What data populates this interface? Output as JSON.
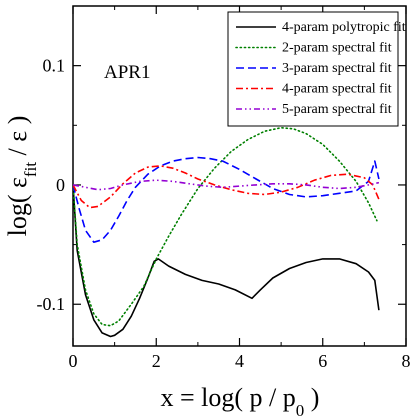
{
  "chart_data": {
    "type": "line",
    "annotation": "APR1",
    "xlabel": {
      "main": "x = log( p / p",
      "sub": "0",
      "tail": " )"
    },
    "ylabel": {
      "main": "log( ε",
      "sub": "fit",
      "tail": " / ε )"
    },
    "xlim": [
      0,
      8
    ],
    "ylim": [
      -0.135,
      0.15
    ],
    "xticks": [
      0,
      2,
      4,
      6,
      8
    ],
    "xtick_labels": [
      "0",
      "2",
      "4",
      "6",
      "8"
    ],
    "yticks": [
      -0.1,
      0,
      0.1
    ],
    "ytick_labels": [
      "-0.1",
      "0",
      "0.1"
    ],
    "grid": false,
    "legend_position": "top-right",
    "series": [
      {
        "name": "4-param polytropic fit",
        "color": "#000000",
        "dash": "solid",
        "x": [
          0,
          0.1,
          0.3,
          0.5,
          0.7,
          0.9,
          1.0,
          1.2,
          1.4,
          1.6,
          1.8,
          1.95,
          2.05,
          2.3,
          2.7,
          3.1,
          3.5,
          3.9,
          4.3,
          4.5,
          4.8,
          5.2,
          5.6,
          6.0,
          6.4,
          6.8,
          7.1,
          7.25,
          7.35
        ],
        "y": [
          0,
          -0.055,
          -0.092,
          -0.113,
          -0.124,
          -0.127,
          -0.126,
          -0.121,
          -0.11,
          -0.095,
          -0.078,
          -0.064,
          -0.062,
          -0.068,
          -0.075,
          -0.08,
          -0.083,
          -0.088,
          -0.095,
          -0.088,
          -0.078,
          -0.07,
          -0.065,
          -0.062,
          -0.062,
          -0.066,
          -0.073,
          -0.08,
          -0.105
        ]
      },
      {
        "name": "2-param spectral fit",
        "color": "#008000",
        "dash": "1.2,3",
        "x": [
          0,
          0.1,
          0.3,
          0.5,
          0.7,
          0.9,
          1.1,
          1.4,
          1.7,
          2.0,
          2.3,
          2.6,
          3.0,
          3.4,
          3.8,
          4.2,
          4.6,
          5.0,
          5.3,
          5.6,
          6.0,
          6.4,
          6.8,
          7.1,
          7.3
        ],
        "y": [
          0,
          -0.05,
          -0.088,
          -0.108,
          -0.117,
          -0.118,
          -0.114,
          -0.1,
          -0.085,
          -0.062,
          -0.043,
          -0.025,
          -0.003,
          0.014,
          0.028,
          0.038,
          0.045,
          0.048,
          0.047,
          0.043,
          0.034,
          0.02,
          0.003,
          -0.015,
          -0.03
        ]
      },
      {
        "name": "3-param spectral fit",
        "color": "#0000ff",
        "dash": "8,4",
        "x": [
          0,
          0.15,
          0.3,
          0.5,
          0.7,
          0.9,
          1.1,
          1.3,
          1.5,
          1.8,
          2.1,
          2.4,
          2.7,
          3.0,
          3.3,
          3.6,
          4.0,
          4.4,
          4.8,
          5.2,
          5.6,
          6.0,
          6.4,
          6.8,
          7.1,
          7.25,
          7.35
        ],
        "y": [
          0,
          -0.02,
          -0.038,
          -0.048,
          -0.046,
          -0.038,
          -0.026,
          -0.013,
          -0.002,
          0.009,
          0.016,
          0.02,
          0.022,
          0.023,
          0.022,
          0.02,
          0.013,
          0.005,
          -0.003,
          -0.008,
          -0.01,
          -0.009,
          -0.007,
          -0.005,
          0.003,
          0.02,
          0.005
        ]
      },
      {
        "name": "4-param spectral fit",
        "color": "#ff0000",
        "dash": "7,3,2,3",
        "x": [
          0,
          0.2,
          0.4,
          0.6,
          0.9,
          1.2,
          1.5,
          1.8,
          2.1,
          2.4,
          2.7,
          3.0,
          3.4,
          3.8,
          4.2,
          4.6,
          5.0,
          5.4,
          5.8,
          6.2,
          6.6,
          7.0,
          7.2,
          7.35
        ],
        "y": [
          0,
          -0.013,
          -0.019,
          -0.018,
          -0.01,
          0.001,
          0.01,
          0.015,
          0.016,
          0.014,
          0.01,
          0.005,
          0.0,
          -0.004,
          -0.007,
          -0.008,
          -0.006,
          -0.002,
          0.004,
          0.008,
          0.009,
          0.006,
          0.0,
          -0.012
        ]
      },
      {
        "name": "5-param spectral fit",
        "color": "#9400d3",
        "dash": "6,3,1.5,3,1.5,3",
        "x": [
          0,
          0.3,
          0.6,
          0.9,
          1.2,
          1.6,
          2.0,
          2.4,
          2.8,
          3.2,
          3.6,
          4.0,
          4.4,
          4.8,
          5.2,
          5.6,
          6.0,
          6.4,
          6.8,
          7.1,
          7.35
        ],
        "y": [
          0,
          -0.002,
          -0.004,
          -0.003,
          0.0,
          0.003,
          0.004,
          0.003,
          0.001,
          -0.001,
          -0.002,
          -0.001,
          0.0,
          0.001,
          0.001,
          0.0,
          -0.002,
          -0.003,
          -0.002,
          0.0,
          0.002
        ]
      }
    ]
  }
}
